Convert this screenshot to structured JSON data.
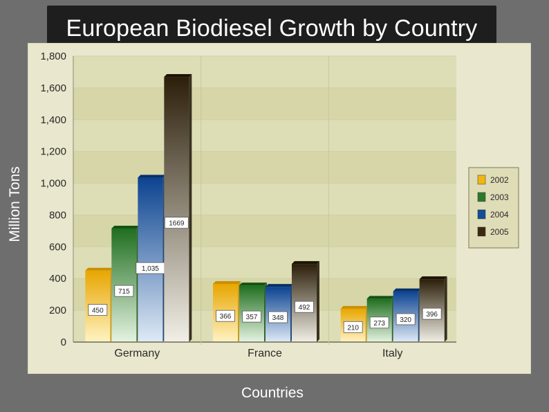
{
  "title": "European Biodiesel Growth by Country",
  "chart_data": {
    "type": "bar",
    "title": "European Biodiesel Growth by Country",
    "xlabel": "Countries",
    "ylabel": "Million Tons",
    "ylim": [
      0,
      1800
    ],
    "yticks": [
      0,
      200,
      400,
      600,
      800,
      1000,
      1200,
      1400,
      1600,
      1800
    ],
    "ytick_labels": [
      "0",
      "200",
      "400",
      "600",
      "800",
      "1,000",
      "1,200",
      "1,400",
      "1,600",
      "1,800"
    ],
    "categories": [
      "Germany",
      "France",
      "Italy"
    ],
    "series": [
      {
        "name": "2002",
        "values": [
          450,
          366,
          210
        ],
        "labels": [
          "450",
          "366",
          "210"
        ],
        "color": "#f2b613"
      },
      {
        "name": "2003",
        "values": [
          715,
          357,
          273
        ],
        "labels": [
          "715",
          "357",
          "273"
        ],
        "color": "#2b7a2b"
      },
      {
        "name": "2004",
        "values": [
          1035,
          348,
          320
        ],
        "labels": [
          "1,035",
          "348",
          "320"
        ],
        "color": "#124d96"
      },
      {
        "name": "2005",
        "values": [
          1669,
          492,
          396
        ],
        "labels": [
          "1669",
          "492",
          "396"
        ],
        "color": "#3a2a12"
      }
    ],
    "legend_position": "right",
    "grid": true
  }
}
